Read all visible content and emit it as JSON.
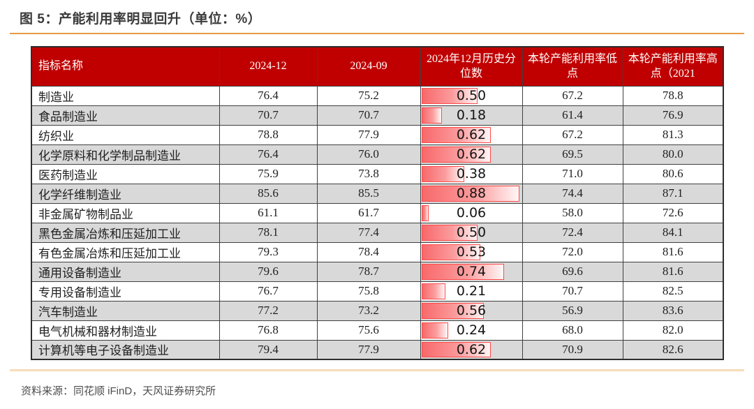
{
  "figure": {
    "title": "图 5：产能利用率明显回升（单位：%）",
    "source": "资料来源：同花顺 iFinD，天风证券研究所"
  },
  "colors": {
    "header_bg": "#C00000",
    "header_text": "#FFFFFF",
    "band_row_bg": "#D9D9D9",
    "grid_border": "#3F3F3F",
    "databar_fill_start": "#F8696B",
    "databar_fill_end": "#FFF6F6",
    "databar_border": "#FF4B4B",
    "rule_top": "#E69B43",
    "rule_bottom": "#F8DCB8",
    "title_text": "#3A3A3A",
    "source_text": "#4D4D4D"
  },
  "chart_data": {
    "type": "table",
    "title": "图 5：产能利用率明显回升（单位：%）",
    "columns": [
      "指标名称",
      "2024-12",
      "2024-09",
      "2024年12月历史分位数",
      "本轮产能利用率低点",
      "本轮产能利用率高点（2021"
    ],
    "rows": [
      [
        "制造业",
        "76.4",
        "75.2",
        "0.50",
        "67.2",
        "78.8"
      ],
      [
        "食品制造业",
        "70.7",
        "70.7",
        "0.18",
        "61.4",
        "76.9"
      ],
      [
        "纺织业",
        "78.8",
        "77.9",
        "0.62",
        "67.2",
        "81.3"
      ],
      [
        "化学原料和化学制品制造业",
        "76.4",
        "76.0",
        "0.62",
        "69.5",
        "80.0"
      ],
      [
        "医药制造业",
        "75.9",
        "73.8",
        "0.38",
        "71.0",
        "80.6"
      ],
      [
        "化学纤维制造业",
        "85.6",
        "85.5",
        "0.88",
        "74.4",
        "87.1"
      ],
      [
        "非金属矿物制品业",
        "61.1",
        "61.7",
        "0.06",
        "58.0",
        "72.6"
      ],
      [
        "黑色金属冶炼和压延加工业",
        "78.1",
        "77.4",
        "0.50",
        "72.4",
        "84.1"
      ],
      [
        "有色金属冶炼和压延加工业",
        "79.3",
        "78.4",
        "0.53",
        "72.0",
        "81.6"
      ],
      [
        "通用设备制造业",
        "79.6",
        "78.7",
        "0.74",
        "69.6",
        "81.6"
      ],
      [
        "专用设备制造业",
        "76.7",
        "75.8",
        "0.21",
        "70.7",
        "82.5"
      ],
      [
        "汽车制造业",
        "77.2",
        "73.2",
        "0.56",
        "56.9",
        "83.6"
      ],
      [
        "电气机械和器材制造业",
        "76.8",
        "75.6",
        "0.24",
        "68.0",
        "82.0"
      ],
      [
        "计算机等电子设备制造业",
        "79.4",
        "77.9",
        "0.62",
        "70.9",
        "82.6"
      ]
    ],
    "databar": {
      "column_index": 3,
      "value_min": 0.06,
      "value_max": 0.88,
      "min_width_pct": 7,
      "max_width_pct": 97
    },
    "layout": {
      "banding": "alternate rows light gray starting at row 2",
      "name_column_align": "left",
      "other_columns_align": "center"
    }
  }
}
